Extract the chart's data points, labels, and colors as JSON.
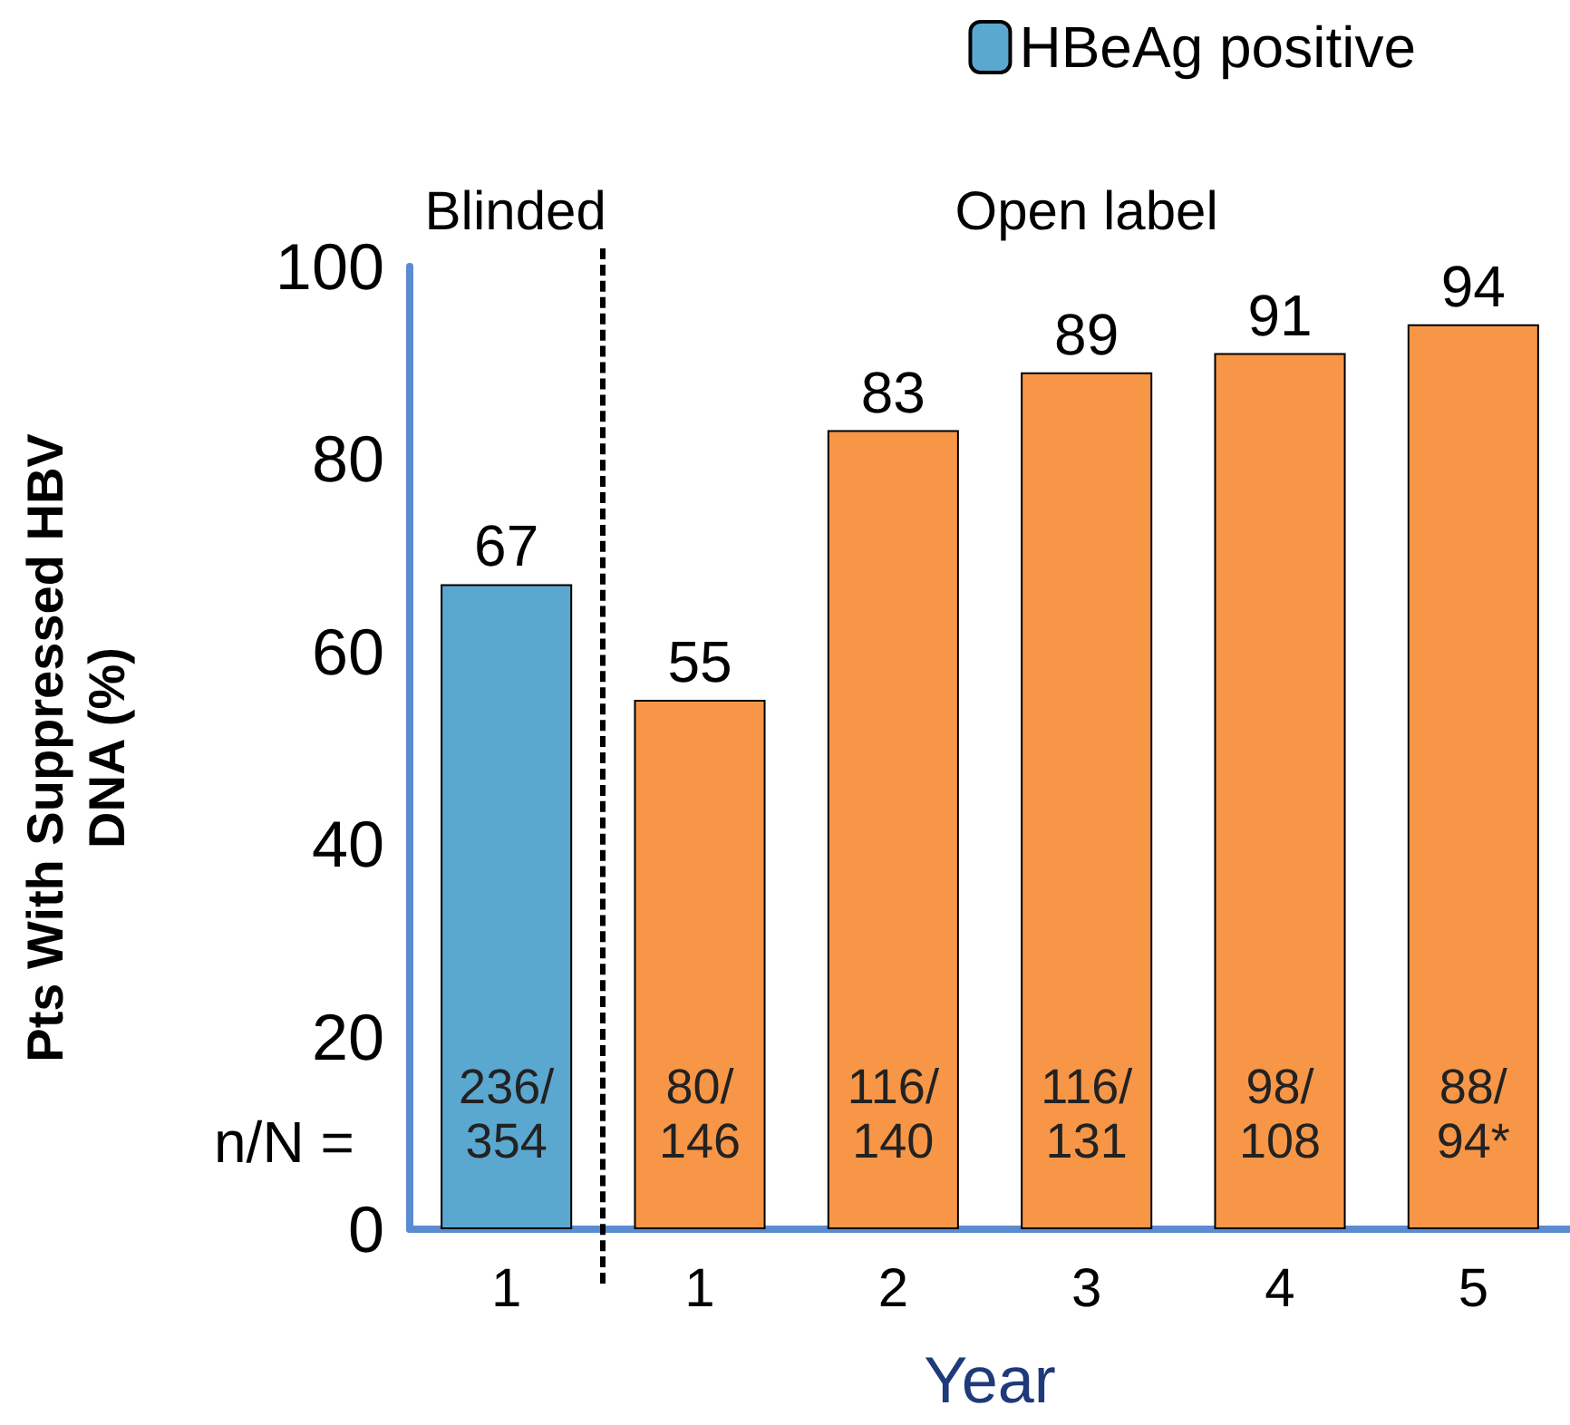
{
  "chart_data": {
    "type": "bar",
    "xlabel": "Year",
    "ylabel": "Pts With Suppressed HBV DNA (%)",
    "categories": [
      "1",
      "1",
      "2",
      "3",
      "4",
      "5"
    ],
    "series": [
      {
        "name": "HBeAg positive",
        "color": "#5aa8d0",
        "values": [
          67,
          null,
          null,
          null,
          null,
          null
        ]
      },
      {
        "color": "#f79646",
        "values": [
          null,
          55,
          83,
          89,
          91,
          94
        ]
      }
    ],
    "ylim": [
      0,
      100
    ],
    "yticks": [
      0,
      20,
      40,
      60,
      80,
      100
    ],
    "grid": false,
    "legend": "top right",
    "data_labels": true,
    "annotations": [
      "Blinded",
      "Open label",
      "n/N =",
      "236/354",
      "80/146",
      "116/140",
      "116/131",
      "98/108",
      "88/94*"
    ]
  }
}
